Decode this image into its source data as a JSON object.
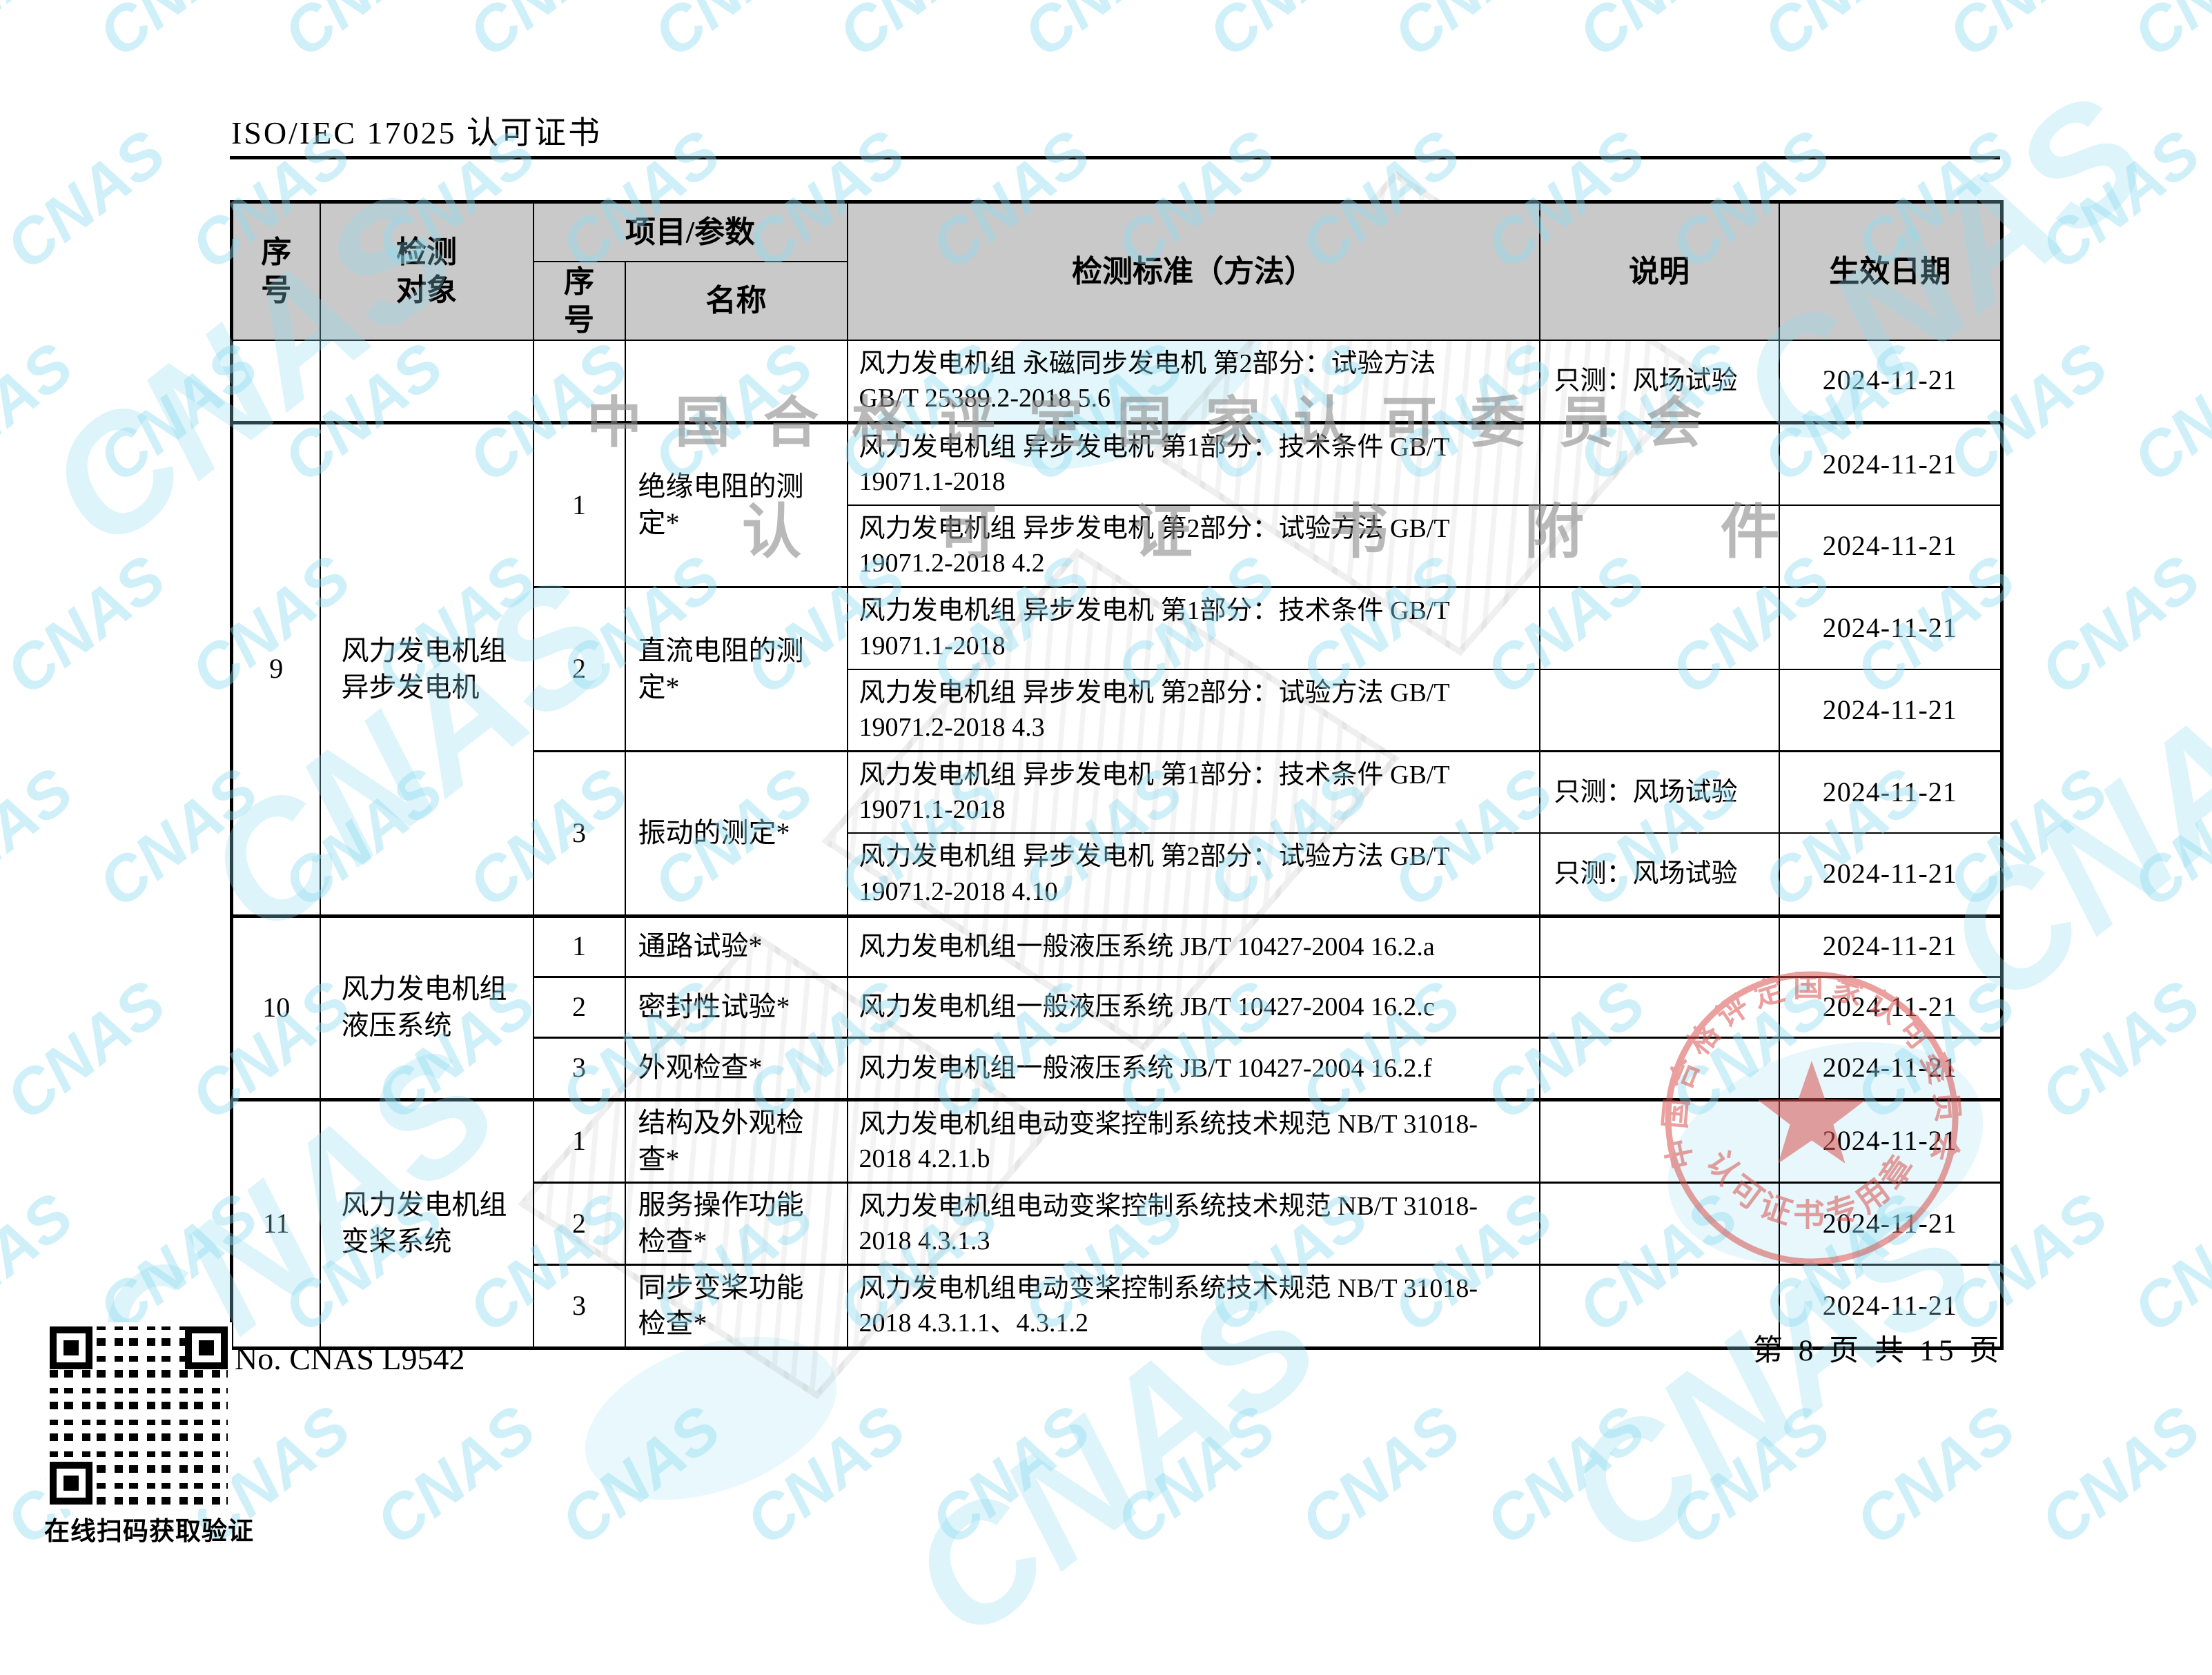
{
  "page": {
    "doc_header": "ISO/IEC 17025 认可证书",
    "cert_no": "No. CNAS L9542",
    "page_indicator": "第 8 页 共 15 页",
    "qr_caption": "在线扫码获取验证"
  },
  "table": {
    "headers": {
      "no": "序\n号",
      "object": "检测\n对象",
      "item_param": "项目/参数",
      "sub_no": "序\n号",
      "sub_name": "名称",
      "standard": "检测标准（方法）",
      "note": "说明",
      "date": "生效日期"
    }
  },
  "rows": [
    {
      "std": "风力发电机组 永磁同步发电机 第2部分：试验方法\nGB/T 25389.2-2018 5.6",
      "note": "只测：风场试验",
      "date": "2024-11-21"
    },
    {
      "group_no": "9",
      "object": "风力发电机组\n异步发电机",
      "item_no": "1",
      "item_name": "绝缘电阻的测\n定*",
      "std": "风力发电机组 异步发电机  第1部分：技术条件 GB/T\n19071.1-2018",
      "note": "",
      "date": "2024-11-21"
    },
    {
      "std": "风力发电机组 异步发电机  第2部分：试验方法 GB/T\n19071.2-2018 4.2",
      "note": "",
      "date": "2024-11-21"
    },
    {
      "item_no": "2",
      "item_name": "直流电阻的测\n定*",
      "std": "风力发电机组 异步发电机  第1部分：技术条件 GB/T\n19071.1-2018",
      "note": "",
      "date": "2024-11-21"
    },
    {
      "std": "风力发电机组 异步发电机  第2部分：试验方法 GB/T\n19071.2-2018 4.3",
      "note": "",
      "date": "2024-11-21"
    },
    {
      "item_no": "3",
      "item_name": "振动的测定*",
      "std": "风力发电机组 异步发电机  第1部分：技术条件 GB/T\n19071.1-2018",
      "note": "只测：风场试验",
      "date": "2024-11-21"
    },
    {
      "std": "风力发电机组 异步发电机  第2部分：试验方法 GB/T\n19071.2-2018 4.10",
      "note": "只测：风场试验",
      "date": "2024-11-21"
    },
    {
      "group_no": "10",
      "object": "风力发电机组\n液压系统",
      "item_no": "1",
      "item_name": "通路试验*",
      "std": "风力发电机组一般液压系统 JB/T 10427-2004 16.2.a",
      "date": "2024-11-21"
    },
    {
      "item_no": "2",
      "item_name": "密封性试验*",
      "std": "风力发电机组一般液压系统 JB/T 10427-2004 16.2.c",
      "date": "2024-11-21"
    },
    {
      "item_no": "3",
      "item_name": "外观检查*",
      "std": "风力发电机组一般液压系统 JB/T 10427-2004 16.2.f",
      "date": "2024-11-21"
    },
    {
      "group_no": "11",
      "object": "风力发电机组\n变桨系统",
      "item_no": "1",
      "item_name": "结构及外观检\n查*",
      "std": "风力发电机组电动变桨控制系统技术规范 NB/T 31018-\n2018 4.2.1.b",
      "date": "2024-11-21"
    },
    {
      "item_no": "2",
      "item_name": "服务操作功能\n检查*",
      "std": "风力发电机组电动变桨控制系统技术规范 NB/T 31018-\n2018 4.3.1.3",
      "date": "2024-11-21"
    },
    {
      "item_no": "3",
      "item_name": "同步变桨功能\n检查*",
      "std": "风力发电机组电动变桨控制系统技术规范 NB/T 31018-\n2018 4.3.1.1、4.3.1.2",
      "date": "2024-11-21"
    }
  ],
  "watermark": {
    "tile_text": "CNAS",
    "tile_color": "#8edcf0",
    "gray_line1": "中 国 合 格 评 定 国 家 认 可 委 员 会",
    "gray_line2": "认 可 证 书 附 件"
  },
  "stamp": {
    "ring_text_top": "中国合格评定国家认可委员会",
    "ring_text_bottom": "认可证书专用章",
    "color": "#d9534f"
  }
}
